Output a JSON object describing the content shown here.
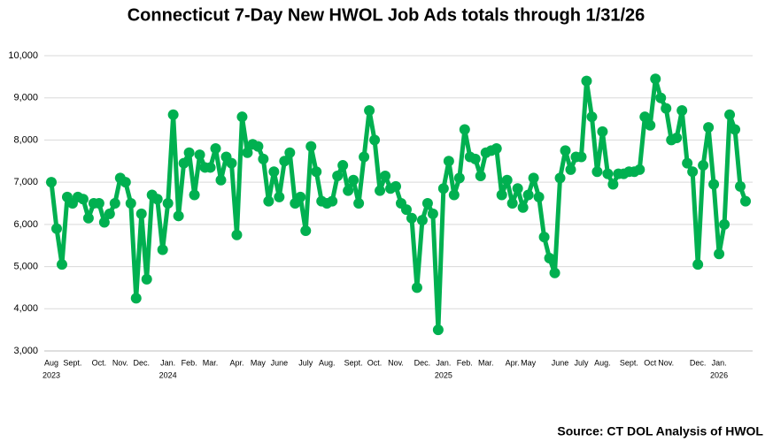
{
  "chart_data": {
    "type": "line",
    "title": "Connecticut 7-Day New HWOL Job Ads totals through 1/31/26",
    "source": "Source: CT DOL Analysis of HWOL",
    "color": "#00b050",
    "grid": true,
    "ylim": [
      3000,
      10000
    ],
    "yticks": [
      {
        "value": 3000,
        "label": "3,000"
      },
      {
        "value": 4000,
        "label": "4,000"
      },
      {
        "value": 5000,
        "label": "5,000"
      },
      {
        "value": 6000,
        "label": "6,000"
      },
      {
        "value": 7000,
        "label": "7,000"
      },
      {
        "value": 8000,
        "label": "8,000"
      },
      {
        "value": 9000,
        "label": "9,000"
      },
      {
        "value": 10000,
        "label": "10,000"
      }
    ],
    "categories": [
      "Aug",
      null,
      null,
      null,
      "Sept.",
      null,
      null,
      null,
      null,
      "Oct.",
      null,
      null,
      null,
      "Nov.",
      null,
      null,
      null,
      "Dec.",
      null,
      null,
      null,
      null,
      "Jan.",
      null,
      null,
      null,
      "Feb.",
      null,
      null,
      null,
      "Mar.",
      null,
      null,
      null,
      null,
      "Apr.",
      null,
      null,
      null,
      "May",
      null,
      null,
      null,
      "June",
      null,
      null,
      null,
      null,
      "July",
      null,
      null,
      null,
      "Aug.",
      null,
      null,
      null,
      null,
      "Sept.",
      null,
      null,
      null,
      "Oct.",
      null,
      null,
      null,
      "Nov.",
      null,
      null,
      null,
      null,
      "Dec.",
      null,
      null,
      null,
      "Jan.",
      null,
      null,
      null,
      "Feb.",
      null,
      null,
      null,
      "Mar.",
      null,
      null,
      null,
      null,
      "Apr.",
      null,
      null,
      "May",
      null,
      null,
      null,
      null,
      null,
      "June",
      null,
      null,
      null,
      "July",
      null,
      null,
      null,
      "Aug.",
      null,
      null,
      null,
      null,
      "Sept.",
      null,
      null,
      null,
      "Oct",
      null,
      null,
      "Nov.",
      null,
      null,
      null,
      null,
      null,
      "Dec.",
      null,
      null,
      null,
      "Jan.",
      null,
      null,
      null,
      null,
      null
    ],
    "years": [
      "2023",
      null,
      null,
      null,
      null,
      null,
      null,
      null,
      null,
      null,
      null,
      null,
      null,
      null,
      null,
      null,
      null,
      null,
      null,
      null,
      null,
      null,
      "2024",
      null,
      null,
      null,
      null,
      null,
      null,
      null,
      null,
      null,
      null,
      null,
      null,
      null,
      null,
      null,
      null,
      null,
      null,
      null,
      null,
      null,
      null,
      null,
      null,
      null,
      null,
      null,
      null,
      null,
      null,
      null,
      null,
      null,
      null,
      null,
      null,
      null,
      null,
      null,
      null,
      null,
      null,
      null,
      null,
      null,
      null,
      null,
      null,
      null,
      null,
      null,
      "2025",
      null,
      null,
      null,
      null,
      null,
      null,
      null,
      null,
      null,
      null,
      null,
      null,
      null,
      null,
      null,
      null,
      null,
      null,
      null,
      null,
      null,
      null,
      null,
      null,
      null,
      null,
      null,
      null,
      null,
      null,
      null,
      null,
      null,
      null,
      null,
      null,
      null,
      null,
      null,
      null,
      null,
      null,
      null,
      null,
      null,
      null,
      null,
      null,
      null,
      null,
      null,
      "2026",
      null,
      null,
      null,
      null,
      null
    ],
    "values": [
      7000,
      5900,
      5050,
      6650,
      6500,
      6650,
      6600,
      6150,
      6500,
      6500,
      6050,
      6250,
      6500,
      7100,
      7000,
      6500,
      4250,
      6250,
      4700,
      6700,
      6600,
      5400,
      6500,
      8600,
      6200,
      7450,
      7700,
      6700,
      7650,
      7350,
      7350,
      7800,
      7050,
      7600,
      7450,
      5750,
      8550,
      7700,
      7900,
      7850,
      7550,
      6550,
      7250,
      6650,
      7500,
      7700,
      6500,
      6650,
      5850,
      7850,
      7250,
      6550,
      6500,
      6550,
      7150,
      7400,
      6800,
      7050,
      6500,
      7600,
      8700,
      8000,
      6800,
      7150,
      6850,
      6900,
      6500,
      6350,
      6150,
      4500,
      6100,
      6500,
      6250,
      3500,
      6850,
      7500,
      6700,
      7100,
      8250,
      7600,
      7550,
      7150,
      7700,
      7750,
      7800,
      6700,
      7050,
      6500,
      6850,
      6400,
      6700,
      7100,
      6650,
      5700,
      5200,
      4850,
      7100,
      7750,
      7300,
      7600,
      7600,
      9400,
      8550,
      7250,
      8200,
      7200,
      6950,
      7200,
      7200,
      7250,
      7250,
      7300,
      8550,
      8350,
      9450,
      9000,
      8750,
      8000,
      8050,
      8700,
      7450,
      7250,
      5050,
      7400,
      8300,
      6950,
      5300,
      6000,
      8600,
      8250,
      6900,
      6550
    ]
  }
}
